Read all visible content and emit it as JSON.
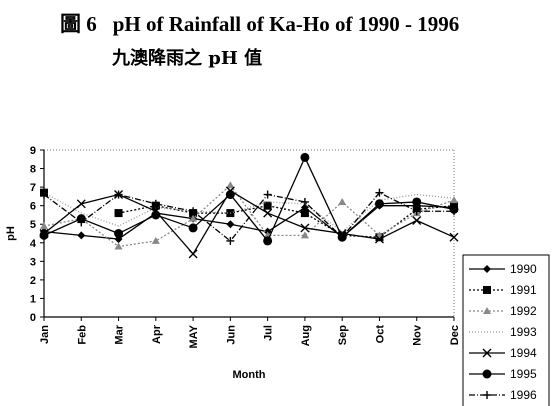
{
  "header": {
    "figure_label": "圖 6",
    "title": "pH of Rainfall of Ka-Ho of 1990 - 1996",
    "subtitle": "九澳降雨之 pH 值"
  },
  "chart_data": {
    "type": "line",
    "categories": [
      "Jan",
      "Feb",
      "Mar",
      "Apr",
      "MAY",
      "Jun",
      "Jul",
      "Aug",
      "Sep",
      "Oct",
      "Nov",
      "Dec"
    ],
    "xlabel": "Month",
    "ylabel": "pH",
    "ylim": [
      0,
      9
    ],
    "yticks": [
      0,
      1,
      2,
      3,
      4,
      5,
      6,
      7,
      8,
      9
    ],
    "legend_position": "right",
    "series": [
      {
        "name": "1990",
        "marker": "diamond",
        "dash": "solid",
        "color": "#000000",
        "values": [
          4.6,
          4.4,
          4.2,
          5.6,
          5.3,
          5.0,
          4.6,
          5.9,
          4.3,
          6.0,
          6.0,
          5.9
        ]
      },
      {
        "name": "1991",
        "marker": "square",
        "dash": "dotted",
        "color": "#000000",
        "values": [
          6.7,
          null,
          5.6,
          6.0,
          5.6,
          5.6,
          6.0,
          5.6,
          4.4,
          4.3,
          5.8,
          6.0
        ]
      },
      {
        "name": "1992",
        "marker": "triangle",
        "dash": "dotted",
        "color": "#888888",
        "values": [
          4.9,
          5.3,
          3.8,
          4.1,
          5.3,
          7.1,
          4.4,
          4.4,
          6.2,
          4.4,
          5.6,
          6.3
        ]
      },
      {
        "name": "1993",
        "marker": "none",
        "dash": "dotted-fine",
        "color": "#999999",
        "values": [
          6.7,
          5.6,
          4.9,
          5.9,
          5.7,
          5.6,
          6.2,
          6.1,
          4.6,
          6.3,
          6.6,
          6.4
        ]
      },
      {
        "name": "1994",
        "marker": "x",
        "dash": "solid",
        "color": "#000000",
        "values": [
          4.5,
          6.1,
          6.6,
          5.7,
          3.4,
          6.8,
          5.6,
          4.8,
          4.5,
          4.2,
          5.2,
          4.3
        ]
      },
      {
        "name": "1995",
        "marker": "circle",
        "dash": "solid",
        "color": "#000000",
        "values": [
          4.4,
          5.3,
          4.5,
          5.5,
          4.8,
          6.6,
          4.1,
          8.6,
          4.3,
          6.1,
          6.2,
          5.8
        ]
      },
      {
        "name": "1996",
        "marker": "plus",
        "dash": "dash-dot",
        "color": "#000000",
        "values": [
          6.6,
          5.1,
          6.6,
          6.1,
          5.7,
          4.1,
          6.6,
          6.2,
          4.3,
          6.7,
          5.7,
          5.7
        ]
      }
    ]
  }
}
